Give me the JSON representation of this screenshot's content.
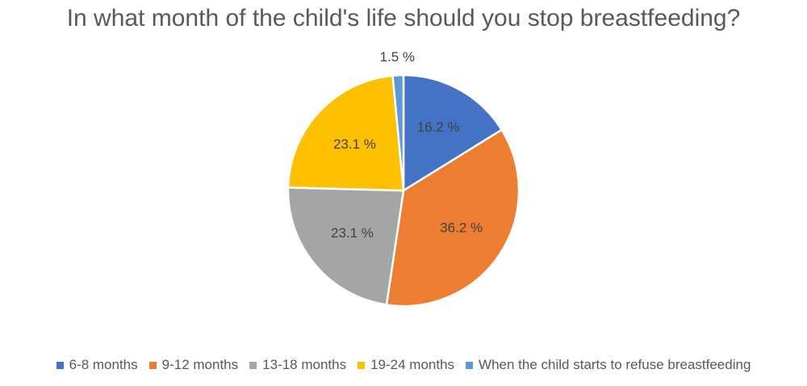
{
  "chart_data": {
    "type": "pie",
    "title": "In what month of the child's life should you stop breastfeeding?",
    "legend_position": "bottom",
    "slices": [
      {
        "name": "6-8 months",
        "value": 16.2,
        "label": "16.2 %",
        "color": "#4472C4"
      },
      {
        "name": "9-12 months",
        "value": 36.2,
        "label": "36.2 %",
        "color": "#ED7D31"
      },
      {
        "name": "13-18 months",
        "value": 23.1,
        "label": "23.1 %",
        "color": "#A5A5A5"
      },
      {
        "name": "19-24 months",
        "value": 23.1,
        "label": "23.1 %",
        "color": "#FFC000"
      },
      {
        "name": "When the child starts to refuse breastfeeding",
        "value": 1.5,
        "label": "1.5 %",
        "color": "#5B9BD5"
      }
    ]
  }
}
